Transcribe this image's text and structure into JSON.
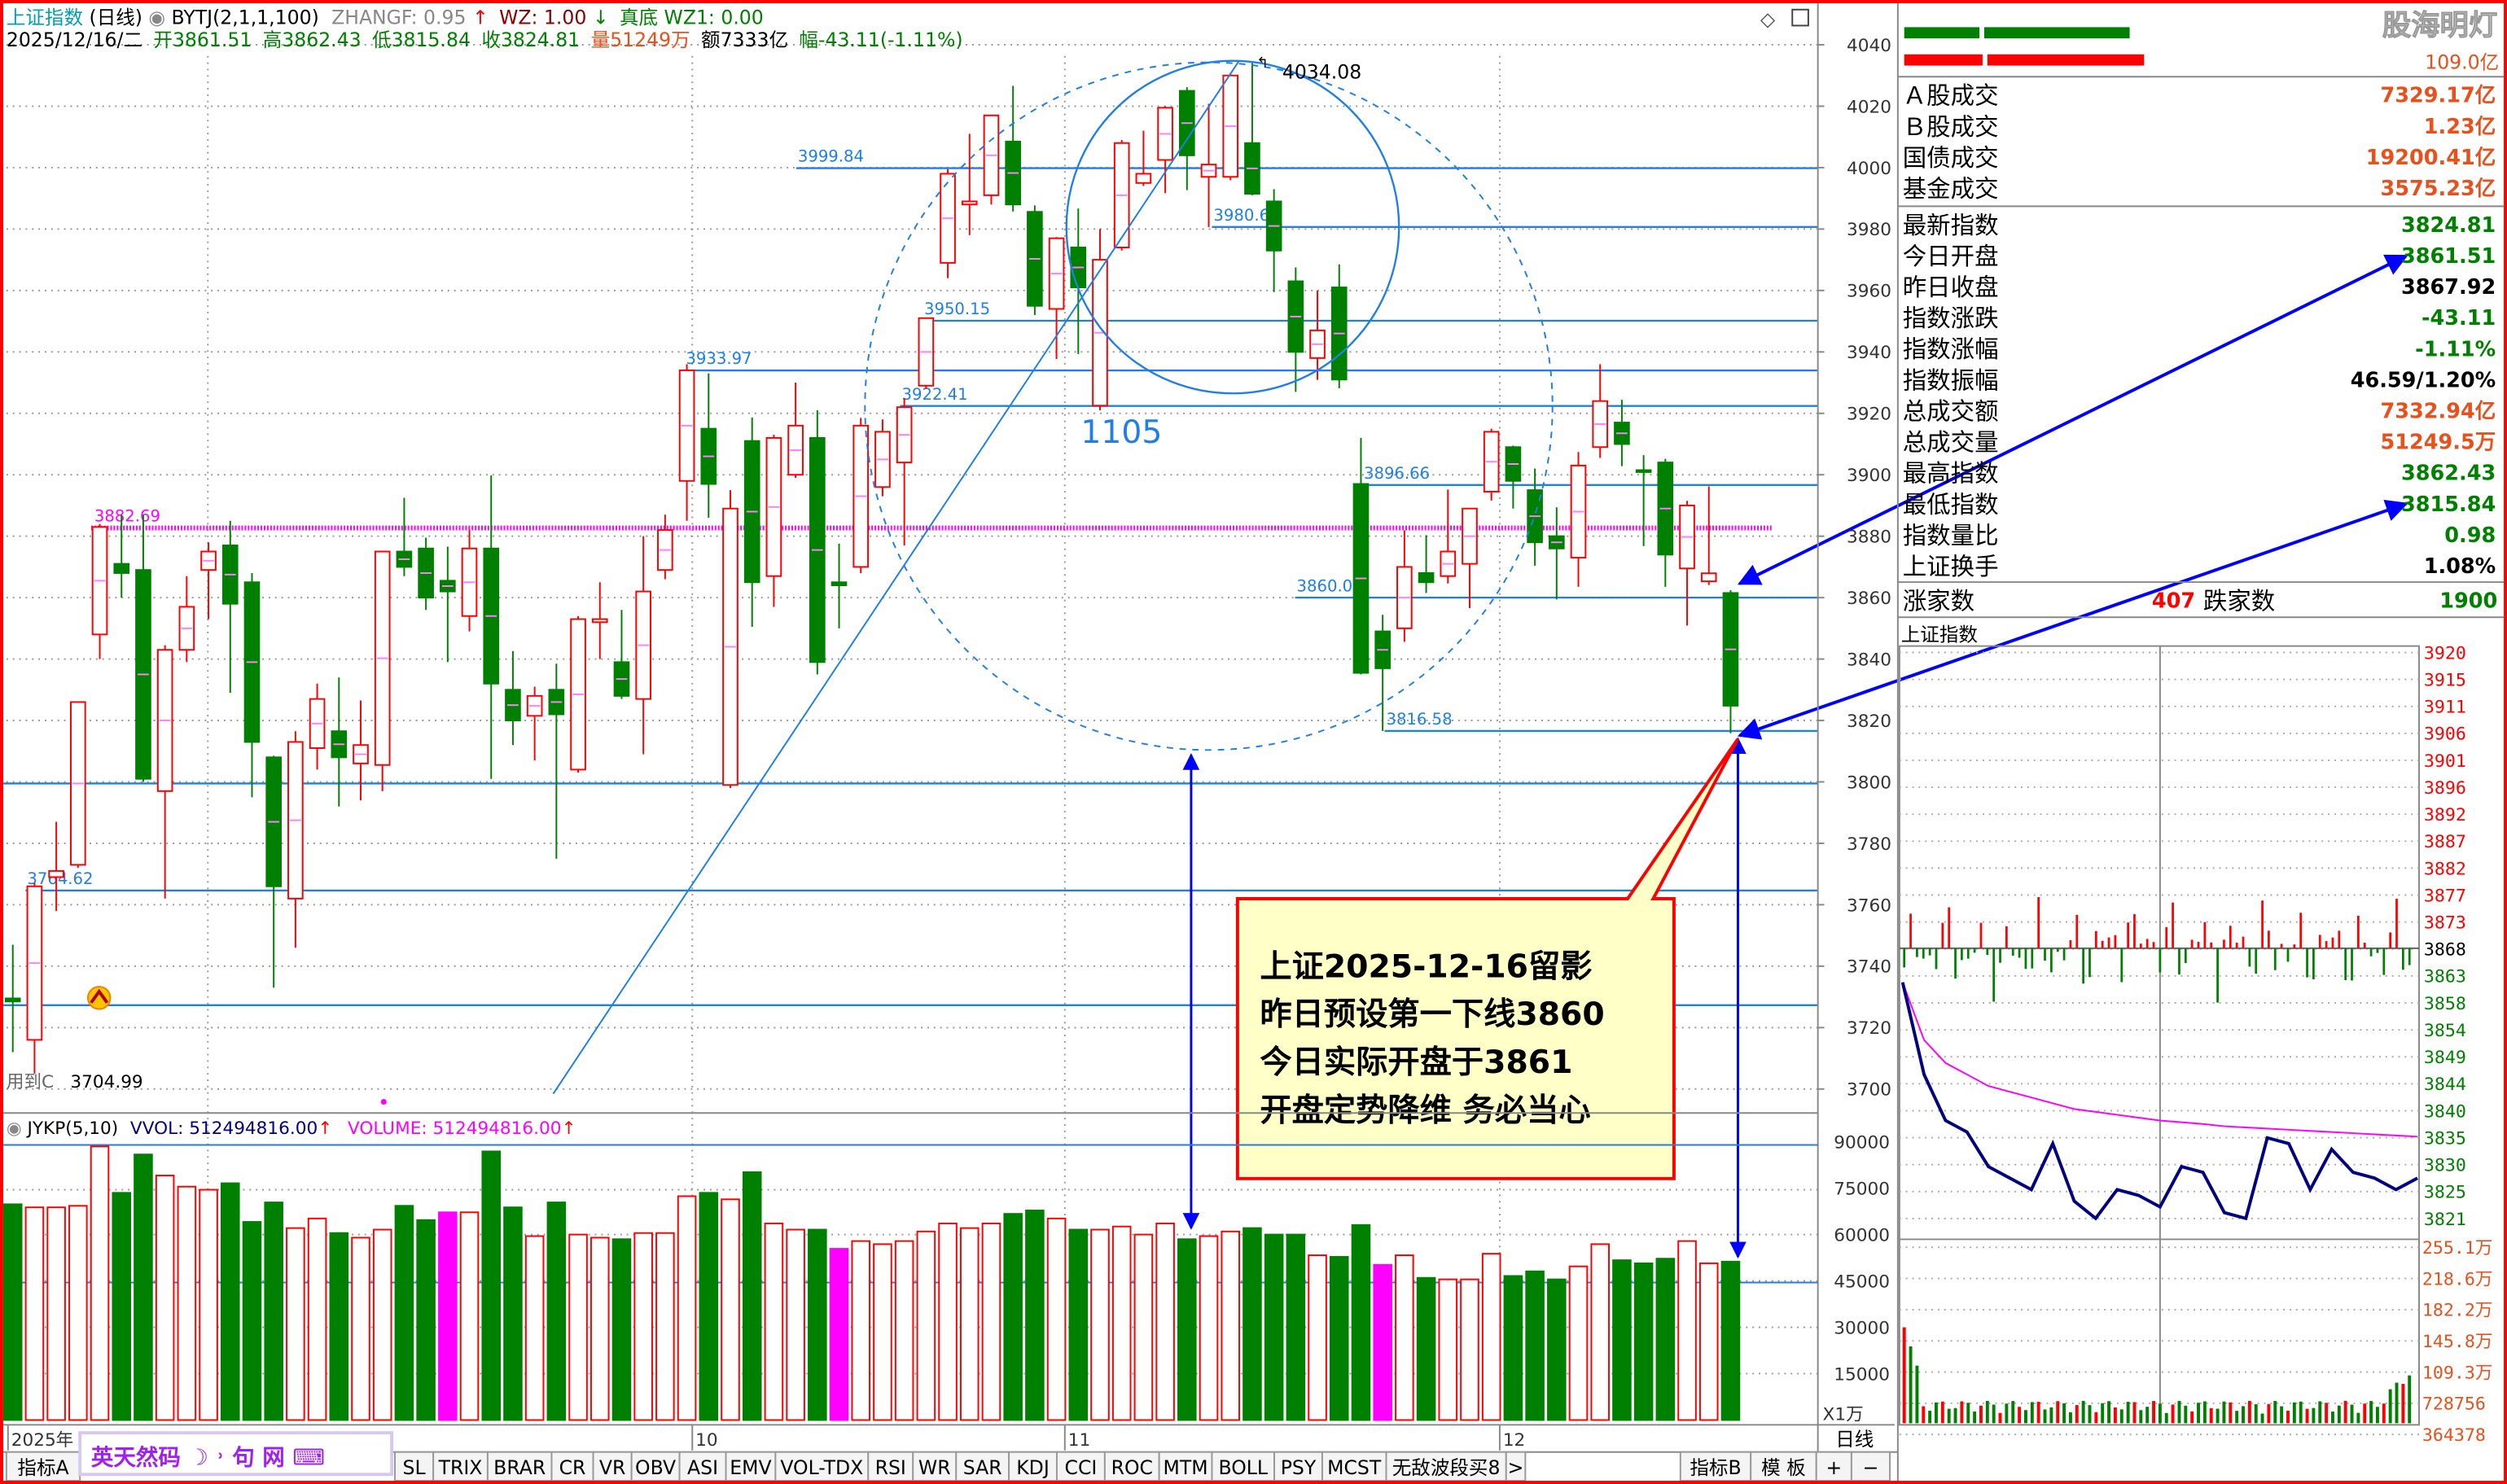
{
  "header": {
    "title": "上证指数",
    "period": "(日线)",
    "indicator": "BYTJ(2,1,1,100)",
    "zhangf": "ZHANGF: 0.95",
    "wz": "WZ: 1.00",
    "zhendi": "真底",
    "wz1": "WZ1: 0.00",
    "date": "2025/12/16/二",
    "open_label": "开",
    "open": "3861.51",
    "high_label": "高",
    "high": "3862.43",
    "low_label": "低",
    "low": "3815.84",
    "close_label": "收",
    "close": "3824.81",
    "vol_label": "量",
    "vol": "51249万",
    "amt_label": "额",
    "amt": "7333亿",
    "chg_label": "幅",
    "chg": "-43.11(-1.11%)"
  },
  "colors": {
    "up": "#ff0000",
    "down": "#008000",
    "line": "#1e7fe8",
    "magenta": "#ff00ff",
    "callout_bg": "#ffffc8"
  },
  "price_axis": [
    "4040",
    "4020",
    "4000",
    "3980",
    "3960",
    "3940",
    "3920",
    "3900",
    "3880",
    "3860",
    "3840",
    "3820",
    "3800",
    "3780",
    "3760",
    "3740",
    "3720",
    "3700"
  ],
  "chart_data": {
    "type": "candlestick",
    "ohlc_fields": [
      "open",
      "high",
      "low",
      "close"
    ],
    "ohlc": [
      [
        3729.5,
        3747,
        3712,
        3728.5
      ],
      [
        3716,
        3767,
        3705,
        3766
      ],
      [
        3769,
        3787,
        3758,
        3771
      ],
      [
        3773,
        3826,
        3772,
        3826
      ],
      [
        3848,
        3884,
        3840,
        3883
      ],
      [
        3871,
        3887,
        3860,
        3868
      ],
      [
        3869,
        3887,
        3800,
        3801
      ],
      [
        3797,
        3844.5,
        3762,
        3843
      ],
      [
        3843,
        3867,
        3839,
        3857
      ],
      [
        3869,
        3878,
        3853,
        3875
      ],
      [
        3877,
        3885,
        3829,
        3858
      ],
      [
        3865,
        3868,
        3795,
        3813
      ],
      [
        3808,
        3808.5,
        3733,
        3766
      ],
      [
        3762,
        3816.5,
        3746,
        3813
      ],
      [
        3811,
        3832,
        3804,
        3827
      ],
      [
        3816.5,
        3834,
        3792,
        3808
      ],
      [
        3806,
        3826.5,
        3794,
        3812
      ],
      [
        3805.5,
        3875,
        3797,
        3875
      ],
      [
        3875,
        3892.5,
        3867,
        3870
      ],
      [
        3876,
        3879.5,
        3856,
        3860
      ],
      [
        3865.5,
        3876.6,
        3839,
        3862
      ],
      [
        3854,
        3882,
        3849,
        3876
      ],
      [
        3876,
        3899.8,
        3801,
        3832
      ],
      [
        3830,
        3842.6,
        3812,
        3820
      ],
      [
        3821.5,
        3831,
        3807,
        3828
      ],
      [
        3830,
        3838.5,
        3775,
        3822
      ],
      [
        3804,
        3854,
        3803,
        3853
      ],
      [
        3852,
        3865,
        3840,
        3853
      ],
      [
        3839,
        3856,
        3827,
        3828
      ],
      [
        3827,
        3880,
        3809,
        3862
      ],
      [
        3869,
        3887,
        3866,
        3882
      ],
      [
        3898,
        3936,
        3885,
        3934
      ],
      [
        3915,
        3933,
        3886,
        3897
      ],
      [
        3799,
        3895,
        3798,
        3889
      ],
      [
        3911,
        3918.6,
        3850.5,
        3865
      ],
      [
        3867,
        3913,
        3857,
        3912
      ],
      [
        3900,
        3930,
        3899,
        3916
      ],
      [
        3912,
        3921,
        3835,
        3839
      ],
      [
        3865,
        3877.6,
        3850,
        3864
      ],
      [
        3870,
        3918.5,
        3868,
        3916
      ],
      [
        3896,
        3918,
        3893,
        3914
      ],
      [
        3904,
        3925,
        3877,
        3922
      ],
      [
        3929,
        3951,
        3928,
        3951
      ],
      [
        3969,
        3999.5,
        3964,
        3998
      ],
      [
        3988,
        4011,
        3978,
        3989
      ],
      [
        3991,
        4017,
        3988,
        4017
      ],
      [
        4008.5,
        4026.6,
        3985.7,
        3988
      ],
      [
        3985.6,
        3987.7,
        3952,
        3955
      ],
      [
        3954,
        3977.4,
        3937.7,
        3977
      ],
      [
        3974,
        3986.7,
        3939.3,
        3961
      ],
      [
        3922.5,
        3980,
        3921,
        3970
      ],
      [
        3974,
        4009,
        3973,
        4008
      ],
      [
        3995,
        4012,
        3994,
        3998
      ],
      [
        4002.5,
        4020,
        3991.7,
        4019.5
      ],
      [
        4025,
        4026.2,
        3992.7,
        4004
      ],
      [
        3997,
        4020.8,
        3980.68,
        4001
      ],
      [
        3997,
        4030.8,
        3995.9,
        4030
      ],
      [
        4008,
        4034.08,
        3991,
        3991.5
      ],
      [
        3989,
        3993,
        3959.5,
        3973
      ],
      [
        3963,
        3967.5,
        3927,
        3940
      ],
      [
        3938,
        3960,
        3930.9,
        3947
      ],
      [
        3961,
        3968.5,
        3928.2,
        3931
      ],
      [
        3897,
        3912,
        3835,
        3835.5
      ],
      [
        3849,
        3854.4,
        3816.58,
        3837
      ],
      [
        3850,
        3881.9,
        3845.6,
        3870
      ],
      [
        3868,
        3880.3,
        3861.5,
        3865
      ],
      [
        3867,
        3895.2,
        3864.6,
        3875
      ],
      [
        3871,
        3889,
        3856.6,
        3889
      ],
      [
        3894.5,
        3915,
        3891.6,
        3914
      ],
      [
        3909,
        3909.5,
        3889,
        3898
      ],
      [
        3895,
        3902,
        3870.4,
        3878
      ],
      [
        3880,
        3889.4,
        3859.4,
        3876
      ],
      [
        3873,
        3907.4,
        3863.5,
        3903
      ],
      [
        3909,
        3936,
        3905.5,
        3924
      ],
      [
        3917,
        3924.4,
        3902.8,
        3910
      ],
      [
        3901.5,
        3906.4,
        3876.8,
        3901
      ],
      [
        3904,
        3905.2,
        3863.5,
        3874
      ],
      [
        3869.5,
        3891.5,
        3850.9,
        3890
      ],
      [
        3865.3,
        3896.2,
        3864.1,
        3867.92
      ],
      [
        3861.51,
        3862.43,
        3815.84,
        3824.81
      ]
    ],
    "volume_unit": "万",
    "volume": [
      69800,
      68800,
      68800,
      69300,
      88500,
      73500,
      85900,
      79100,
      75500,
      74500,
      76600,
      64100,
      70400,
      62100,
      65200,
      60500,
      59000,
      61600,
      69300,
      64700,
      67200,
      67200,
      86900,
      68800,
      59500,
      70400,
      60000,
      59000,
      58500,
      60500,
      60500,
      72400,
      73500,
      71400,
      80200,
      63600,
      61600,
      61600,
      55400,
      57900,
      56900,
      57900,
      61000,
      63600,
      62100,
      63600,
      66700,
      67800,
      65200,
      61600,
      61600,
      62600,
      60000,
      63600,
      58500,
      59500,
      61000,
      62100,
      60000,
      60000,
      53300,
      52800,
      63100,
      50200,
      53300,
      46000,
      45500,
      45500,
      53800,
      46600,
      48100,
      45500,
      49700,
      56900,
      51700,
      50700,
      52200,
      57900,
      50700,
      51249
    ],
    "volume_highlight_index": [
      20,
      38,
      63
    ],
    "volume_axis": [
      "90000",
      "75000",
      "60000",
      "45000",
      "30000",
      "15000"
    ],
    "volume_axis_unit": "X1万",
    "x_axis": [
      "2025年",
      "10",
      "11",
      "12"
    ],
    "ylim": [
      3700,
      4040
    ]
  },
  "annotations": {
    "levels": [
      {
        "label": "3999.84",
        "price": 3999.84
      },
      {
        "label": "3980.68",
        "price": 3980.68
      },
      {
        "label": "3950.15",
        "price": 3950.15
      },
      {
        "label": "3933.97",
        "price": 3933.97
      },
      {
        "label": "3922.41",
        "price": 3922.41
      },
      {
        "label": "3896.66",
        "price": 3896.66
      },
      {
        "label": "3860.00",
        "price": 3860.0
      },
      {
        "label": "3816.58",
        "price": 3816.58
      },
      {
        "label": "3764.62",
        "price": 3764.62
      }
    ],
    "pressure_line": {
      "label": "3882.69",
      "price": 3882.69
    },
    "peak_label": "4034.08",
    "cycle_label": "1105",
    "low_label": "3704.99",
    "low_hint": "用到C",
    "callout": [
      "上证2025-12-16留影",
      "昨日预设第一下线3860",
      "今日实际开盘于3861",
      "开盘定势降维 务必当心"
    ]
  },
  "volume_panel": {
    "indicator": "JYKP(5,10)",
    "vvol": "VVOL: 512494816.00",
    "volume": "VOLUME: 512494816.00"
  },
  "right_panel": {
    "watermark": "股海明灯",
    "top_value": "109.0亿",
    "group1": [
      {
        "label": "Ａ股成交",
        "value": "7329.17亿",
        "color": "#e8501c"
      },
      {
        "label": "Ｂ股成交",
        "value": "1.23亿",
        "color": "#e8501c"
      },
      {
        "label": "国债成交",
        "value": "19200.41亿",
        "color": "#e8501c"
      },
      {
        "label": "基金成交",
        "value": "3575.23亿",
        "color": "#e8501c"
      }
    ],
    "group2": [
      {
        "label": "最新指数",
        "value": "3824.81",
        "color": "#008000"
      },
      {
        "label": "今日开盘",
        "value": "3861.51",
        "color": "#008000"
      },
      {
        "label": "昨日收盘",
        "value": "3867.92",
        "color": "#000000"
      },
      {
        "label": "指数涨跌",
        "value": "-43.11",
        "color": "#008000"
      },
      {
        "label": "指数涨幅",
        "value": "-1.11%",
        "color": "#008000"
      },
      {
        "label": "指数振幅",
        "value": "46.59/1.20%",
        "color": "#000000"
      },
      {
        "label": "总成交额",
        "value": "7332.94亿",
        "color": "#e8501c"
      },
      {
        "label": "总成交量",
        "value": "51249.5万",
        "color": "#e8501c"
      },
      {
        "label": "最高指数",
        "value": "3862.43",
        "color": "#008000"
      },
      {
        "label": "最低指数",
        "value": "3815.84",
        "color": "#008000"
      },
      {
        "label": "指数量比",
        "value": "0.98",
        "color": "#008000"
      },
      {
        "label": "上证换手",
        "value": "1.08%",
        "color": "#000000"
      }
    ],
    "breadth": {
      "up_label": "涨家数",
      "up": "407",
      "down_label": "跌家数",
      "down": "1900"
    },
    "intraday": {
      "title": "上证指数",
      "prev_close": 3867.92,
      "price_axis": [
        "3920",
        "3915",
        "3911",
        "3906",
        "3901",
        "3896",
        "3892",
        "3887",
        "3882",
        "3877",
        "3873",
        "3868",
        "3863",
        "3858",
        "3854",
        "3849",
        "3844",
        "3840",
        "3835",
        "3830",
        "3825",
        "3821"
      ],
      "volume_axis": [
        "255.1万",
        "218.6万",
        "182.2万",
        "145.8万",
        "109.3万",
        "728756",
        "364378"
      ],
      "price": [
        3862,
        3846,
        3838,
        3836,
        3830,
        3828,
        3826,
        3834,
        3824,
        3821,
        3826,
        3825,
        3823,
        3830,
        3829,
        3822,
        3821,
        3835,
        3834,
        3826,
        3833,
        3829,
        3828,
        3826,
        3828
      ],
      "avg": [
        3862,
        3852,
        3848,
        3846,
        3844,
        3843,
        3842,
        3841,
        3840,
        3839.5,
        3839,
        3838.5,
        3838,
        3837.7,
        3837.4,
        3837,
        3836.8,
        3836.6,
        3836.4,
        3836.2,
        3836,
        3835.8,
        3835.6,
        3835.4,
        3835.2
      ]
    }
  },
  "bottom": {
    "period_label": "日线",
    "ime": "英天然码 ☽ ˒ 句 网 ⌨",
    "tabs_left": [
      "指标A",
      "SL",
      "TRIX",
      "BRAR",
      "CR",
      "VR",
      "OBV",
      "ASI",
      "EMV",
      "VOL-TDX",
      "RSI",
      "WR",
      "SAR",
      "KDJ",
      "CCI",
      "ROC",
      "MTM",
      "BOLL",
      "PSY",
      "MCST",
      "无敌波段买8",
      ">"
    ],
    "tabs_right": [
      "指标B",
      "模 板",
      "+",
      "−"
    ]
  }
}
